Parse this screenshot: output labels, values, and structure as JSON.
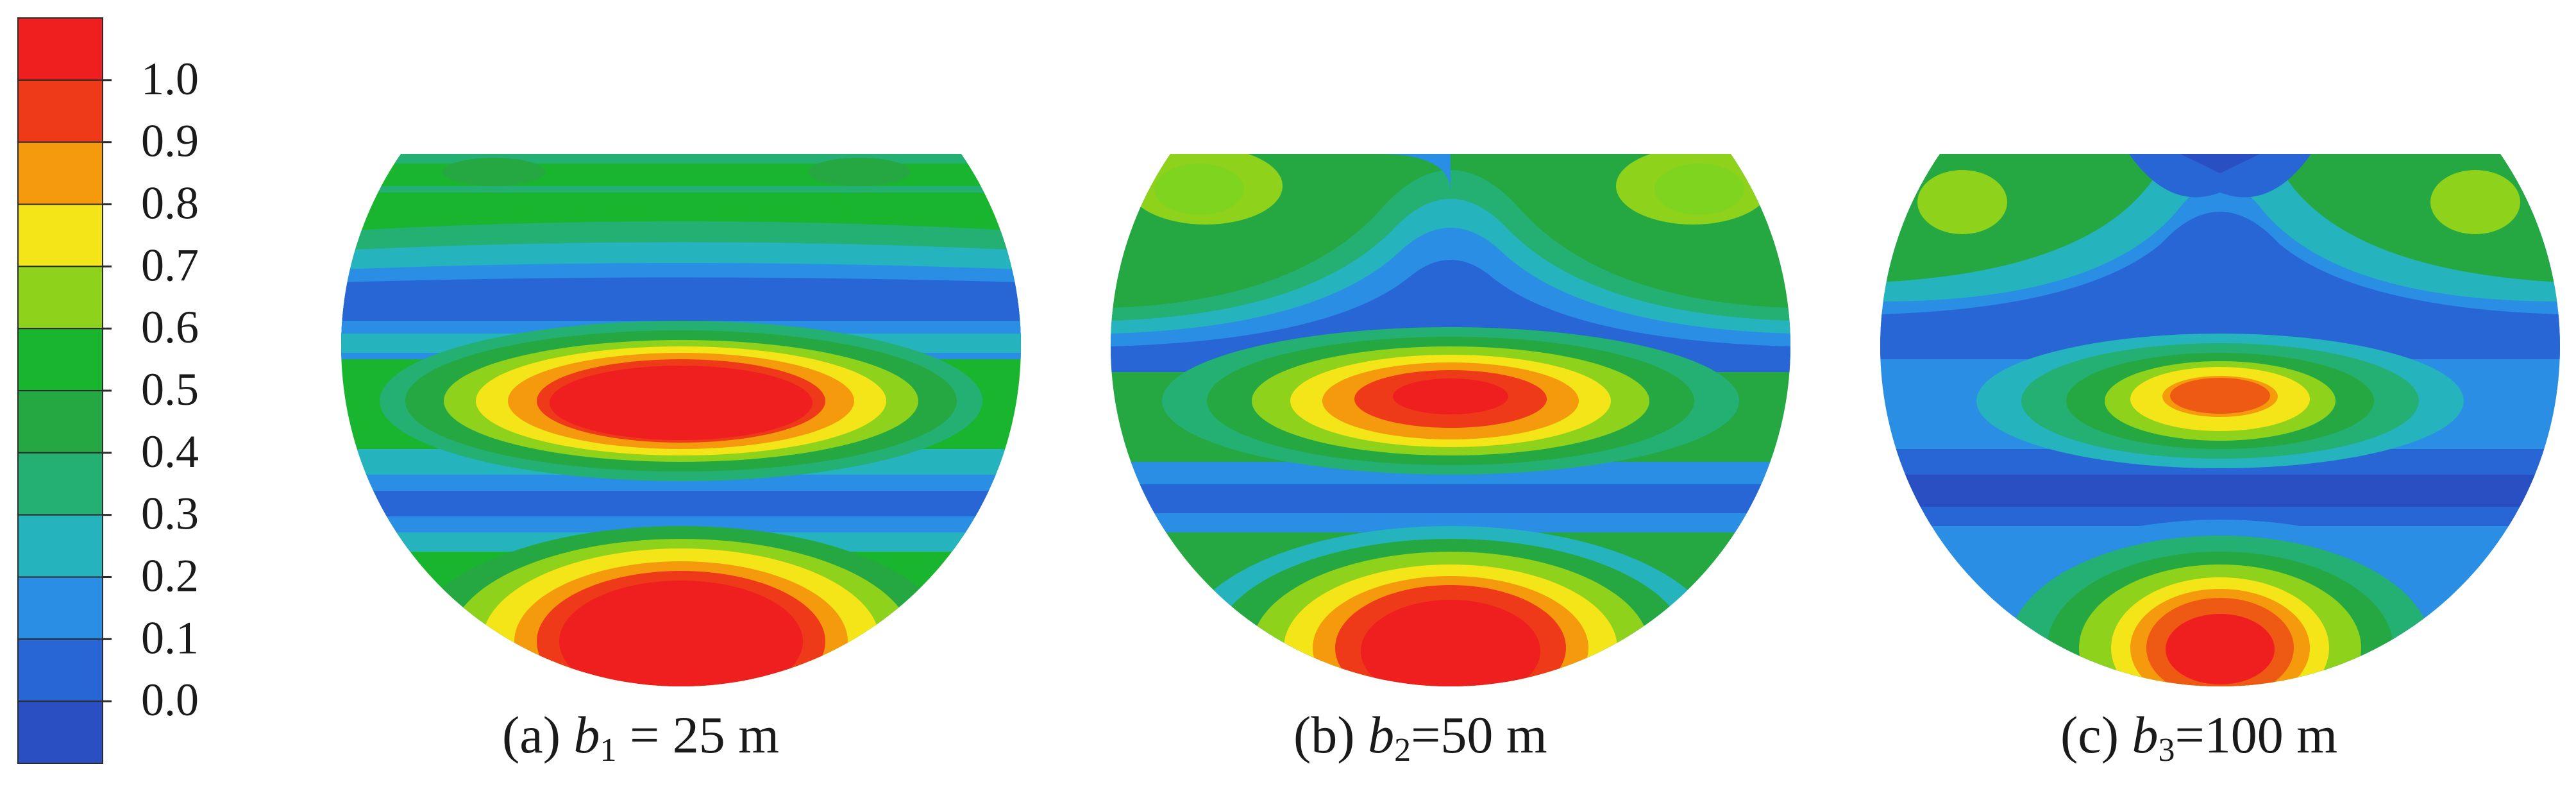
{
  "colorbar": {
    "ticks": [
      "1.0",
      "0.9",
      "0.8",
      "0.7",
      "0.6",
      "0.5",
      "0.4",
      "0.3",
      "0.2",
      "0.1",
      "0.0"
    ],
    "colors": [
      "#ef1f1f",
      "#ee3a18",
      "#f49a0c",
      "#f3e518",
      "#8ed21c",
      "#1ab52e",
      "#25a842",
      "#24af73",
      "#25b4be",
      "#2a8ee4",
      "#2766d4",
      "#2a4fc2"
    ]
  },
  "panels": [
    {
      "id": "a",
      "paren_open": "(a)",
      "var": "b",
      "sub": "1",
      "value": " = 25 m"
    },
    {
      "id": "b",
      "paren_open": "(b)",
      "var": "b",
      "sub": "2",
      "value": "=50 m"
    },
    {
      "id": "c",
      "paren_open": "(c)",
      "var": "b",
      "sub": "3",
      "value": "=100 m"
    }
  ]
}
